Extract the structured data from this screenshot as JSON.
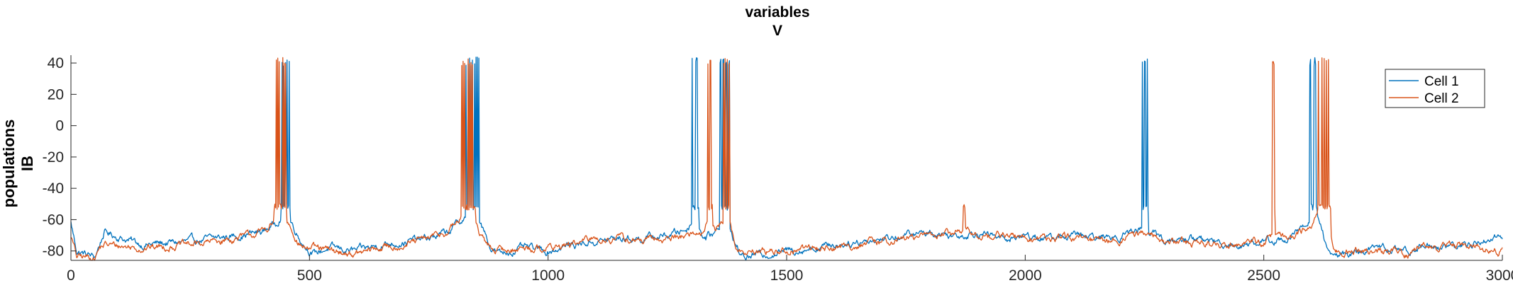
{
  "chart_data": {
    "type": "line",
    "title": [
      "variables",
      "V"
    ],
    "ylabel": [
      "populations",
      "IB"
    ],
    "xlabel": "",
    "xlim": [
      0,
      3000
    ],
    "ylim": [
      -86,
      45
    ],
    "xticks": [
      0,
      500,
      1000,
      1500,
      2000,
      2500,
      3000
    ],
    "yticks": [
      -80,
      -60,
      -40,
      -20,
      0,
      20,
      40
    ],
    "grid": false,
    "legend_position": "top-right",
    "series": [
      {
        "name": "Cell 1",
        "color": "#0072BD",
        "baseline": [
          [
            0,
            -62
          ],
          [
            12,
            -80
          ],
          [
            50,
            -84
          ],
          [
            60,
            -76
          ],
          [
            70,
            -68
          ],
          [
            150,
            -76
          ],
          [
            250,
            -74
          ],
          [
            350,
            -70
          ],
          [
            400,
            -68
          ],
          [
            430,
            -62
          ],
          [
            445,
            -55
          ],
          [
            460,
            -60
          ],
          [
            470,
            -66
          ],
          [
            480,
            -72
          ],
          [
            495,
            -78
          ],
          [
            510,
            -82
          ],
          [
            540,
            -78
          ],
          [
            600,
            -80
          ],
          [
            650,
            -76
          ],
          [
            700,
            -74
          ],
          [
            750,
            -72
          ],
          [
            790,
            -68
          ],
          [
            820,
            -60
          ],
          [
            835,
            -55
          ],
          [
            855,
            -60
          ],
          [
            870,
            -70
          ],
          [
            880,
            -78
          ],
          [
            900,
            -82
          ],
          [
            950,
            -78
          ],
          [
            1000,
            -80
          ],
          [
            1050,
            -76
          ],
          [
            1100,
            -74
          ],
          [
            1150,
            -72
          ],
          [
            1200,
            -72
          ],
          [
            1250,
            -70
          ],
          [
            1290,
            -66
          ],
          [
            1305,
            -60
          ],
          [
            1315,
            -66
          ],
          [
            1330,
            -72
          ],
          [
            1350,
            -68
          ],
          [
            1365,
            -62
          ],
          [
            1380,
            -64
          ],
          [
            1395,
            -78
          ],
          [
            1410,
            -84
          ],
          [
            1450,
            -82
          ],
          [
            1500,
            -80
          ],
          [
            1550,
            -78
          ],
          [
            1600,
            -76
          ],
          [
            1650,
            -74
          ],
          [
            1700,
            -72
          ],
          [
            1750,
            -70
          ],
          [
            1800,
            -68
          ],
          [
            1850,
            -70
          ],
          [
            1900,
            -68
          ],
          [
            1950,
            -72
          ],
          [
            2000,
            -70
          ],
          [
            2050,
            -72
          ],
          [
            2100,
            -70
          ],
          [
            2150,
            -72
          ],
          [
            2200,
            -70
          ],
          [
            2240,
            -66
          ],
          [
            2250,
            -60
          ],
          [
            2260,
            -68
          ],
          [
            2300,
            -74
          ],
          [
            2350,
            -72
          ],
          [
            2400,
            -74
          ],
          [
            2450,
            -76
          ],
          [
            2500,
            -74
          ],
          [
            2550,
            -72
          ],
          [
            2590,
            -64
          ],
          [
            2605,
            -57
          ],
          [
            2620,
            -62
          ],
          [
            2630,
            -76
          ],
          [
            2645,
            -84
          ],
          [
            2700,
            -80
          ],
          [
            2750,
            -78
          ],
          [
            2800,
            -80
          ],
          [
            2850,
            -76
          ],
          [
            2900,
            -78
          ],
          [
            2950,
            -74
          ],
          [
            3000,
            -70
          ]
        ],
        "bursts": [
          [
            440,
            460,
            8
          ],
          [
            828,
            855,
            8
          ],
          [
            1302,
            1316,
            8
          ],
          [
            1360,
            1380,
            10
          ],
          [
            2245,
            2258,
            6
          ],
          [
            2596,
            2612,
            9
          ]
        ]
      },
      {
        "name": "Cell 2",
        "color": "#D95319",
        "baseline": [
          [
            0,
            -70
          ],
          [
            12,
            -84
          ],
          [
            50,
            -84
          ],
          [
            60,
            -78
          ],
          [
            70,
            -76
          ],
          [
            150,
            -78
          ],
          [
            250,
            -76
          ],
          [
            350,
            -72
          ],
          [
            400,
            -68
          ],
          [
            425,
            -62
          ],
          [
            435,
            -55
          ],
          [
            450,
            -60
          ],
          [
            460,
            -64
          ],
          [
            470,
            -70
          ],
          [
            480,
            -76
          ],
          [
            500,
            -78
          ],
          [
            540,
            -80
          ],
          [
            600,
            -82
          ],
          [
            650,
            -78
          ],
          [
            700,
            -76
          ],
          [
            750,
            -72
          ],
          [
            790,
            -68
          ],
          [
            815,
            -60
          ],
          [
            825,
            -55
          ],
          [
            845,
            -60
          ],
          [
            860,
            -72
          ],
          [
            880,
            -78
          ],
          [
            900,
            -80
          ],
          [
            950,
            -78
          ],
          [
            1000,
            -78
          ],
          [
            1050,
            -76
          ],
          [
            1100,
            -72
          ],
          [
            1150,
            -72
          ],
          [
            1200,
            -74
          ],
          [
            1250,
            -72
          ],
          [
            1290,
            -70
          ],
          [
            1320,
            -68
          ],
          [
            1338,
            -60
          ],
          [
            1350,
            -66
          ],
          [
            1365,
            -62
          ],
          [
            1380,
            -60
          ],
          [
            1395,
            -78
          ],
          [
            1410,
            -82
          ],
          [
            1450,
            -80
          ],
          [
            1500,
            -80
          ],
          [
            1550,
            -78
          ],
          [
            1600,
            -78
          ],
          [
            1650,
            -76
          ],
          [
            1700,
            -74
          ],
          [
            1750,
            -72
          ],
          [
            1800,
            -70
          ],
          [
            1860,
            -68
          ],
          [
            1875,
            -66
          ],
          [
            1890,
            -70
          ],
          [
            1950,
            -70
          ],
          [
            2000,
            -72
          ],
          [
            2050,
            -72
          ],
          [
            2100,
            -72
          ],
          [
            2150,
            -74
          ],
          [
            2200,
            -72
          ],
          [
            2250,
            -68
          ],
          [
            2300,
            -74
          ],
          [
            2350,
            -74
          ],
          [
            2400,
            -76
          ],
          [
            2450,
            -74
          ],
          [
            2500,
            -74
          ],
          [
            2515,
            -70
          ],
          [
            2530,
            -72
          ],
          [
            2560,
            -72
          ],
          [
            2590,
            -66
          ],
          [
            2610,
            -58
          ],
          [
            2635,
            -62
          ],
          [
            2648,
            -80
          ],
          [
            2700,
            -80
          ],
          [
            2750,
            -80
          ],
          [
            2800,
            -82
          ],
          [
            2850,
            -78
          ],
          [
            2900,
            -76
          ],
          [
            2950,
            -78
          ],
          [
            3000,
            -80
          ]
        ],
        "bursts": [
          [
            425,
            452,
            10
          ],
          [
            818,
            848,
            9
          ],
          [
            1335,
            1345,
            5
          ],
          [
            1368,
            1380,
            5
          ],
          [
            1870,
            1874,
            3
          ],
          [
            2518,
            2523,
            3
          ],
          [
            2612,
            2640,
            12
          ]
        ]
      }
    ]
  }
}
